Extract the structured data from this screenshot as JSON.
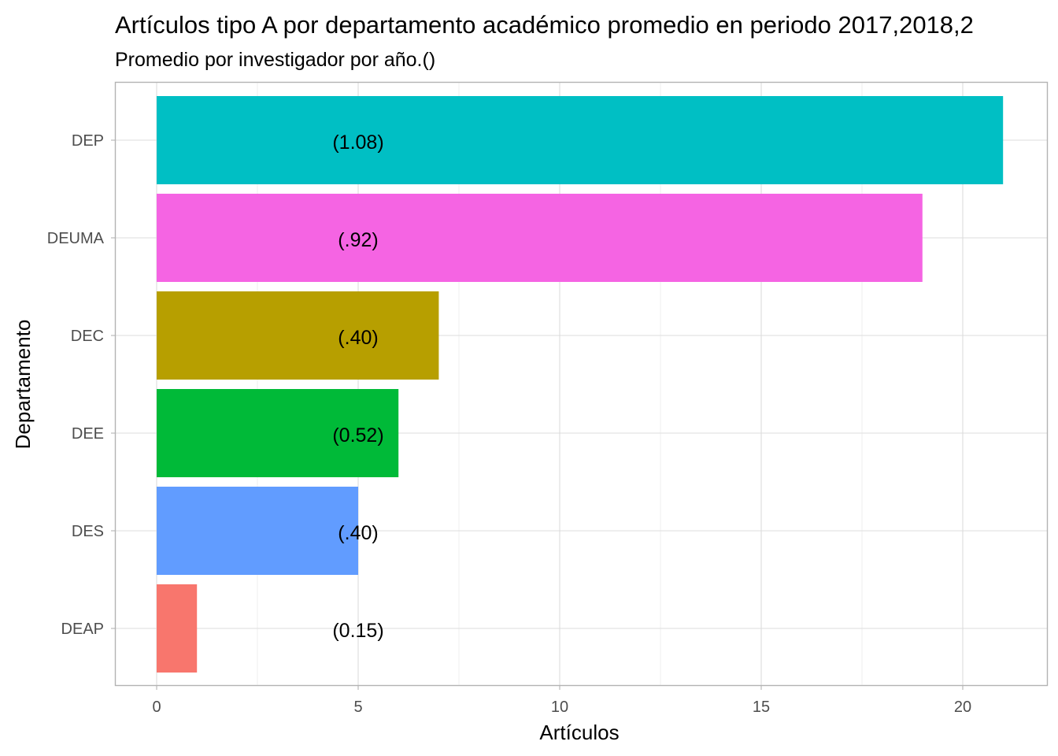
{
  "chart_data": {
    "type": "bar",
    "orientation": "horizontal",
    "title": "Artículos tipo A por departamento académico promedio en periodo 2017,2018,2",
    "subtitle": "Promedio por investigador por año.()",
    "xlabel": "Artículos",
    "ylabel": "Departamento",
    "xlim": [
      -1.0,
      21.6
    ],
    "xticks": [
      0,
      5,
      10,
      15,
      20
    ],
    "grid": true,
    "legend": "none",
    "label_x": 5,
    "categories": [
      "DEP",
      "DEUMA",
      "DEC",
      "DEE",
      "DES",
      "DEAP"
    ],
    "values": [
      21,
      19,
      7,
      6,
      5,
      1
    ],
    "labels": [
      "(1.08)",
      "(.92)",
      "(.40)",
      "(0.52)",
      "(.40)",
      "(0.15)"
    ],
    "colors": [
      "#00BFC4",
      "#F564E3",
      "#B79F00",
      "#00BA38",
      "#619CFF",
      "#F8766D"
    ]
  }
}
